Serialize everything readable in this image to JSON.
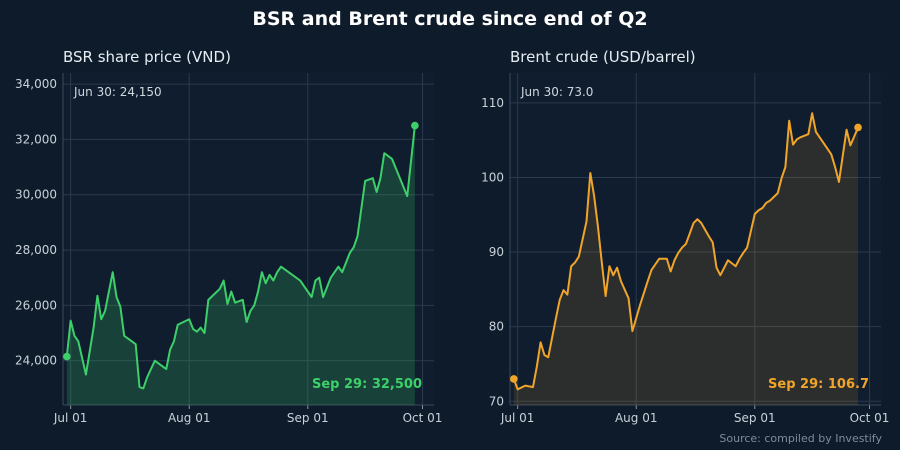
{
  "title": "BSR and Brent crude since end of Q2",
  "source": "Source: compiled by Investify",
  "colors": {
    "background": "#0d1b2a",
    "plot_bg": "#0f1d2e",
    "grid": "#2a3a4d",
    "bsr": "#3dd06a",
    "brent": "#f0a52a"
  },
  "chart_data": [
    {
      "type": "line",
      "title": "BSR share price (VND)",
      "x_dtype": "date",
      "ylim": [
        22400,
        34400
      ],
      "xlim": [
        "2024-06-29",
        "2024-10-04"
      ],
      "yticks": [
        24000,
        26000,
        28000,
        30000,
        32000,
        34000
      ],
      "ytick_labels": [
        "24,000",
        "26,000",
        "28,000",
        "30,000",
        "32,000",
        "34,000"
      ],
      "xticks": [
        "2024-07-01",
        "2024-08-01",
        "2024-09-01",
        "2024-10-01"
      ],
      "xtick_labels": [
        "Jul 01",
        "Aug 01",
        "Sep 01",
        "Oct 01"
      ],
      "grid": true,
      "start_note": "Jun 30: 24,150",
      "end_label": "Sep 29: 32,500",
      "series": [
        {
          "x": [
            "2024-06-30",
            "2024-07-01",
            "2024-07-02",
            "2024-07-03",
            "2024-07-05",
            "2024-07-07",
            "2024-07-08",
            "2024-07-09",
            "2024-07-10",
            "2024-07-12",
            "2024-07-13",
            "2024-07-14",
            "2024-07-15",
            "2024-07-16",
            "2024-07-18",
            "2024-07-19",
            "2024-07-20",
            "2024-07-21",
            "2024-07-23",
            "2024-07-26",
            "2024-07-27",
            "2024-07-28",
            "2024-07-29",
            "2024-08-01",
            "2024-08-02",
            "2024-08-03",
            "2024-08-04",
            "2024-08-05",
            "2024-08-06",
            "2024-08-09",
            "2024-08-10",
            "2024-08-11",
            "2024-08-12",
            "2024-08-13",
            "2024-08-15",
            "2024-08-16",
            "2024-08-17",
            "2024-08-18",
            "2024-08-19",
            "2024-08-20",
            "2024-08-21",
            "2024-08-22",
            "2024-08-23",
            "2024-08-24",
            "2024-08-25",
            "2024-08-30",
            "2024-09-02",
            "2024-09-03",
            "2024-09-04",
            "2024-09-05",
            "2024-09-07",
            "2024-09-09",
            "2024-09-10",
            "2024-09-12",
            "2024-09-13",
            "2024-09-14",
            "2024-09-16",
            "2024-09-18",
            "2024-09-19",
            "2024-09-20",
            "2024-09-21",
            "2024-09-23",
            "2024-09-27",
            "2024-09-29"
          ],
          "y": [
            24150,
            25450,
            24900,
            24700,
            23500,
            25200,
            26350,
            25500,
            25800,
            27200,
            26300,
            25950,
            24900,
            24800,
            24600,
            23050,
            23000,
            23400,
            24000,
            23700,
            24400,
            24700,
            25300,
            25500,
            25150,
            25050,
            25200,
            25000,
            26200,
            26600,
            26900,
            26050,
            26500,
            26100,
            26200,
            25400,
            25800,
            26000,
            26500,
            27200,
            26800,
            27100,
            26900,
            27200,
            27400,
            26900,
            26300,
            26900,
            27000,
            26300,
            27000,
            27400,
            27200,
            27900,
            28100,
            28500,
            30500,
            30600,
            30100,
            30600,
            31500,
            31300,
            29950,
            32500
          ]
        }
      ]
    },
    {
      "type": "line",
      "title": "Brent crude (USD/barrel)",
      "x_dtype": "date",
      "ylim": [
        69.5,
        114
      ],
      "xlim": [
        "2024-06-29",
        "2024-10-04"
      ],
      "yticks": [
        70,
        80,
        90,
        100,
        110
      ],
      "ytick_labels": [
        "70",
        "80",
        "90",
        "100",
        "110"
      ],
      "xticks": [
        "2024-07-01",
        "2024-08-01",
        "2024-09-01",
        "2024-10-01"
      ],
      "xtick_labels": [
        "Jul 01",
        "Aug 01",
        "Sep 01",
        "Oct 01"
      ],
      "grid": true,
      "start_note": "Jun 30: 73.0",
      "end_label": "Sep 29: 106.7",
      "series": [
        {
          "x": [
            "2024-06-30",
            "2024-07-01",
            "2024-07-03",
            "2024-07-05",
            "2024-07-06",
            "2024-07-07",
            "2024-07-08",
            "2024-07-09",
            "2024-07-11",
            "2024-07-12",
            "2024-07-13",
            "2024-07-14",
            "2024-07-15",
            "2024-07-16",
            "2024-07-17",
            "2024-07-19",
            "2024-07-20",
            "2024-07-21",
            "2024-07-22",
            "2024-07-23",
            "2024-07-24",
            "2024-07-25",
            "2024-07-26",
            "2024-07-27",
            "2024-07-28",
            "2024-07-30",
            "2024-07-31",
            "2024-08-02",
            "2024-08-04",
            "2024-08-05",
            "2024-08-07",
            "2024-08-09",
            "2024-08-10",
            "2024-08-11",
            "2024-08-12",
            "2024-08-13",
            "2024-08-14",
            "2024-08-16",
            "2024-08-17",
            "2024-08-18",
            "2024-08-20",
            "2024-08-21",
            "2024-08-22",
            "2024-08-23",
            "2024-08-25",
            "2024-08-27",
            "2024-08-28",
            "2024-08-29",
            "2024-08-30",
            "2024-09-01",
            "2024-09-02",
            "2024-09-03",
            "2024-09-04",
            "2024-09-05",
            "2024-09-07",
            "2024-09-08",
            "2024-09-09",
            "2024-09-10",
            "2024-09-11",
            "2024-09-12",
            "2024-09-13",
            "2024-09-15",
            "2024-09-16",
            "2024-09-17",
            "2024-09-21",
            "2024-09-22",
            "2024-09-23",
            "2024-09-25",
            "2024-09-26",
            "2024-09-28"
          ],
          "y": [
            73.0,
            71.6,
            72.1,
            71.9,
            74.6,
            77.9,
            76.2,
            75.9,
            81.1,
            83.6,
            84.9,
            84.3,
            88.1,
            88.6,
            89.4,
            94.1,
            100.6,
            97.5,
            93.4,
            88.6,
            84.1,
            88.1,
            86.9,
            87.9,
            86.1,
            83.8,
            79.4,
            82.9,
            86.1,
            87.6,
            89.1,
            89.1,
            87.4,
            88.9,
            89.9,
            90.6,
            91.1,
            93.9,
            94.4,
            93.9,
            92.1,
            91.3,
            87.9,
            86.9,
            88.9,
            88.1,
            89.1,
            89.9,
            90.6,
            95.1,
            95.6,
            95.9,
            96.6,
            96.9,
            97.9,
            99.9,
            101.4,
            107.6,
            104.4,
            105.1,
            105.4,
            105.8,
            108.6,
            106.1,
            103.1,
            101.4,
            99.4,
            106.4,
            104.3,
            106.7
          ]
        }
      ]
    }
  ]
}
